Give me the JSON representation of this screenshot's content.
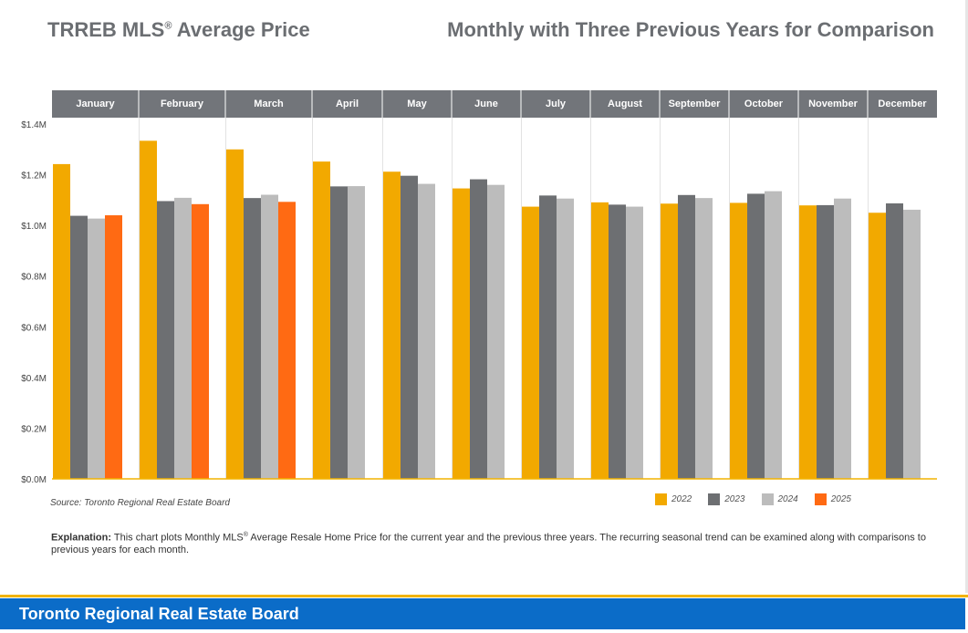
{
  "header": {
    "title_left": "TRREB MLS",
    "title_left_reg": "®",
    "title_left_suffix": " Average Price",
    "title_right": "Monthly with Three Previous Years for Comparison"
  },
  "source": "Source: Toronto Regional Real Estate Board",
  "explanation": {
    "label": "Explanation:",
    "text_a": " This chart plots Monthly MLS",
    "reg": "®",
    "text_b": " Average Resale Home Price for the current year and the previous three years. The recurring seasonal trend can be examined along with comparisons to previous years for each month."
  },
  "footer": {
    "text": "Toronto Regional Real Estate Board"
  },
  "colors": {
    "2022": "#f2a900",
    "2023": "#6d6f72",
    "2024": "#bcbcbc",
    "2025": "#ff6a13",
    "header_band": "#72757a",
    "footer": "#0b6cc8",
    "footer_line": "#f2b300"
  },
  "chart_data": {
    "type": "bar",
    "categories": [
      "January",
      "February",
      "March",
      "April",
      "May",
      "June",
      "July",
      "August",
      "September",
      "October",
      "November",
      "December"
    ],
    "ylim": [
      0,
      1.4
    ],
    "yticks": [
      0,
      0.2,
      0.4,
      0.6,
      0.8,
      1.0,
      1.2,
      1.4
    ],
    "ytick_labels": [
      "$0.0M",
      "$0.2M",
      "$0.4M",
      "$0.6M",
      "$0.8M",
      "$1.0M",
      "$1.2M",
      "$1.4M"
    ],
    "unit": "$M",
    "grid": false,
    "legend_position": "bottom-right",
    "series": [
      {
        "name": "2022",
        "values": [
          1.242,
          1.334,
          1.3,
          1.252,
          1.212,
          1.146,
          1.074,
          1.091,
          1.086,
          1.089,
          1.079,
          1.05
        ]
      },
      {
        "name": "2023",
        "values": [
          1.038,
          1.096,
          1.108,
          1.154,
          1.196,
          1.182,
          1.118,
          1.082,
          1.12,
          1.125,
          1.08,
          1.087
        ]
      },
      {
        "name": "2024",
        "values": [
          1.027,
          1.109,
          1.121,
          1.155,
          1.164,
          1.16,
          1.106,
          1.074,
          1.108,
          1.135,
          1.106,
          1.062
        ]
      },
      {
        "name": "2025",
        "values": [
          1.04,
          1.084,
          1.093,
          null,
          null,
          null,
          null,
          null,
          null,
          null,
          null,
          null
        ]
      }
    ]
  }
}
